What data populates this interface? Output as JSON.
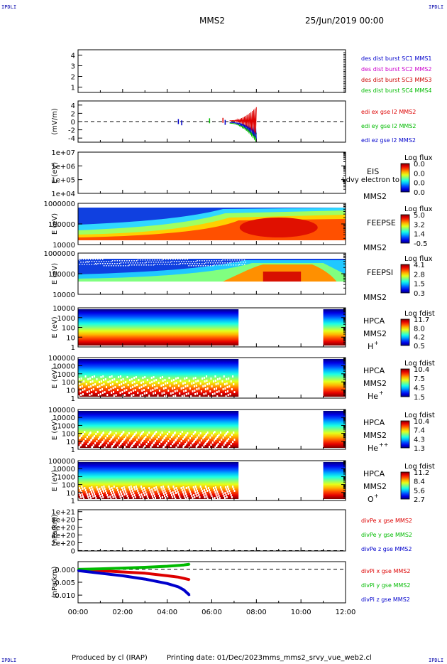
{
  "header": {
    "title": "MMS2",
    "date": "25/Jun/2019 00:00"
  },
  "corner_label": "IPDLI",
  "footer": {
    "produced": "Produced by cl (IRAP)",
    "printing": "Printing date: 01/Dec/2023",
    "file": "mms_mms2_srvy_vue_web2.cl"
  },
  "time_axis": {
    "ticks": [
      "00:00",
      "02:00",
      "04:00",
      "06:00",
      "08:00",
      "10:00",
      "12:00"
    ]
  },
  "chart_data": [
    {
      "type": "line",
      "ylim": [
        0.5,
        4.5
      ],
      "y_ticks": [
        "4",
        "3",
        "2",
        "1"
      ],
      "series": [
        {
          "name": "des dist burst SC1 MMS1",
          "color": "#0000cc",
          "values": []
        },
        {
          "name": "des dist burst SC2 MMS2",
          "color": "#cc00cc",
          "values": []
        },
        {
          "name": "des dist burst SC3 MMS3",
          "color": "#cc0000",
          "values": []
        },
        {
          "name": "des dist burst SC4 MMS4",
          "color": "#00bb00",
          "values": []
        }
      ]
    },
    {
      "type": "line",
      "ylabel": "(mV/m)",
      "ylim": [
        -5,
        5
      ],
      "y_ticks": [
        "4",
        "2",
        "0",
        "-2",
        "-4"
      ],
      "series": [
        {
          "name": "edi ex gse l2 MMS2",
          "color": "#dd0000"
        },
        {
          "name": "edi ey gse l2 MMS2",
          "color": "#00bb00"
        },
        {
          "name": "edi ez gse l2 MMS2",
          "color": "#0000cc"
        }
      ]
    },
    {
      "type": "heatmap",
      "ylabel": "E (eV)",
      "y_ticks": [
        "1e+07",
        "1e+06",
        "1e+05",
        "1e+04"
      ],
      "instrument": "EIS",
      "spacecraft": "MMS2",
      "overlay_text": "Ldvy electron to",
      "colorbar_title": "Log flux",
      "colorbar_ticks": [
        "0.0",
        "0.0",
        "0.0",
        "0.0"
      ]
    },
    {
      "type": "heatmap",
      "ylabel": "E (eV)",
      "y_ticks": [
        "1000000",
        "100000",
        "10000"
      ],
      "instrument": "FEEPSE",
      "spacecraft": "MMS2",
      "colorbar_title": "Log flux",
      "colorbar_ticks": [
        "5.0",
        "3.2",
        "1.4",
        "-0.5"
      ]
    },
    {
      "type": "heatmap",
      "ylabel": "E (eV)",
      "y_ticks": [
        "1000000",
        "100000",
        "10000"
      ],
      "instrument": "FEEPSI",
      "spacecraft": "MMS2",
      "colorbar_title": "Log flux",
      "colorbar_ticks": [
        "4.1",
        "2.8",
        "1.5",
        "0.3"
      ]
    },
    {
      "type": "heatmap",
      "ylabel": "E (eV)",
      "y_ticks": [
        "10000",
        "1000",
        "100",
        "10",
        "1"
      ],
      "instrument": "HPCA",
      "spacecraft": "MMS2",
      "species": "H",
      "charge": "+",
      "colorbar_title": "Log fdist",
      "colorbar_ticks": [
        "11.7",
        "8.0",
        "4.2",
        "0.5"
      ]
    },
    {
      "type": "heatmap",
      "ylabel": "E (eV)",
      "y_ticks": [
        "100000",
        "10000",
        "1000",
        "100",
        "10",
        "1"
      ],
      "instrument": "HPCA",
      "spacecraft": "MMS2",
      "species": "He",
      "charge": "+",
      "colorbar_title": "Log fdist",
      "colorbar_ticks": [
        "10.4",
        "7.5",
        "4.5",
        "1.5"
      ]
    },
    {
      "type": "heatmap",
      "ylabel": "E (eV)",
      "y_ticks": [
        "100000",
        "10000",
        "1000",
        "100",
        "10",
        "1"
      ],
      "instrument": "HPCA",
      "spacecraft": "MMS2",
      "species": "He",
      "charge": "++",
      "colorbar_title": "Log fdist",
      "colorbar_ticks": [
        "10.4",
        "7.4",
        "4.3",
        "1.3"
      ]
    },
    {
      "type": "heatmap",
      "ylabel": "E (eV)",
      "y_ticks": [
        "100000",
        "10000",
        "1000",
        "100",
        "10",
        "1"
      ],
      "instrument": "HPCA",
      "spacecraft": "MMS2",
      "species": "O",
      "charge": "+",
      "colorbar_title": "Log fdist",
      "colorbar_ticks": [
        "11.2",
        "8.4",
        "5.6",
        "2.7"
      ]
    },
    {
      "type": "line",
      "ylabel": "(nPa/km)",
      "ylim": [
        -1e+19,
        1.05e+21
      ],
      "y_ticks": [
        "1e+21",
        "8e+20",
        "6e+20",
        "4e+20",
        "2e+20",
        "0"
      ],
      "series": [
        {
          "name": "divPe x gse MMS2",
          "color": "#dd0000"
        },
        {
          "name": "divPe y gse MMS2",
          "color": "#00bb00"
        },
        {
          "name": "divPe z gse MMS2",
          "color": "#0000cc"
        }
      ]
    },
    {
      "type": "line",
      "ylabel": "(nPa/km)",
      "ylim": [
        -0.013,
        0.003
      ],
      "y_ticks": [
        "0.000",
        "-0.005",
        "-0.010"
      ],
      "series": [
        {
          "name": "divPi x gse MMS2",
          "color": "#dd0000",
          "x": [
            0,
            1,
            2,
            3,
            4,
            4.5,
            4.75,
            5.0
          ],
          "values": [
            0.0,
            -0.0005,
            -0.001,
            -0.0015,
            -0.0025,
            -0.003,
            -0.0035,
            -0.004
          ]
        },
        {
          "name": "divPi y gse MMS2",
          "color": "#00bb00",
          "x": [
            0,
            1,
            2,
            3,
            4,
            4.5,
            4.75,
            5.0
          ],
          "values": [
            0.0,
            0.0002,
            0.0005,
            0.0008,
            0.0012,
            0.0015,
            0.0017,
            0.002
          ]
        },
        {
          "name": "divPi z gse MMS2",
          "color": "#0000cc",
          "x": [
            0,
            1,
            2,
            3,
            4,
            4.5,
            4.75,
            5.0
          ],
          "values": [
            -0.0005,
            -0.0015,
            -0.0025,
            -0.0038,
            -0.0055,
            -0.0068,
            -0.008,
            -0.01
          ]
        }
      ]
    }
  ]
}
